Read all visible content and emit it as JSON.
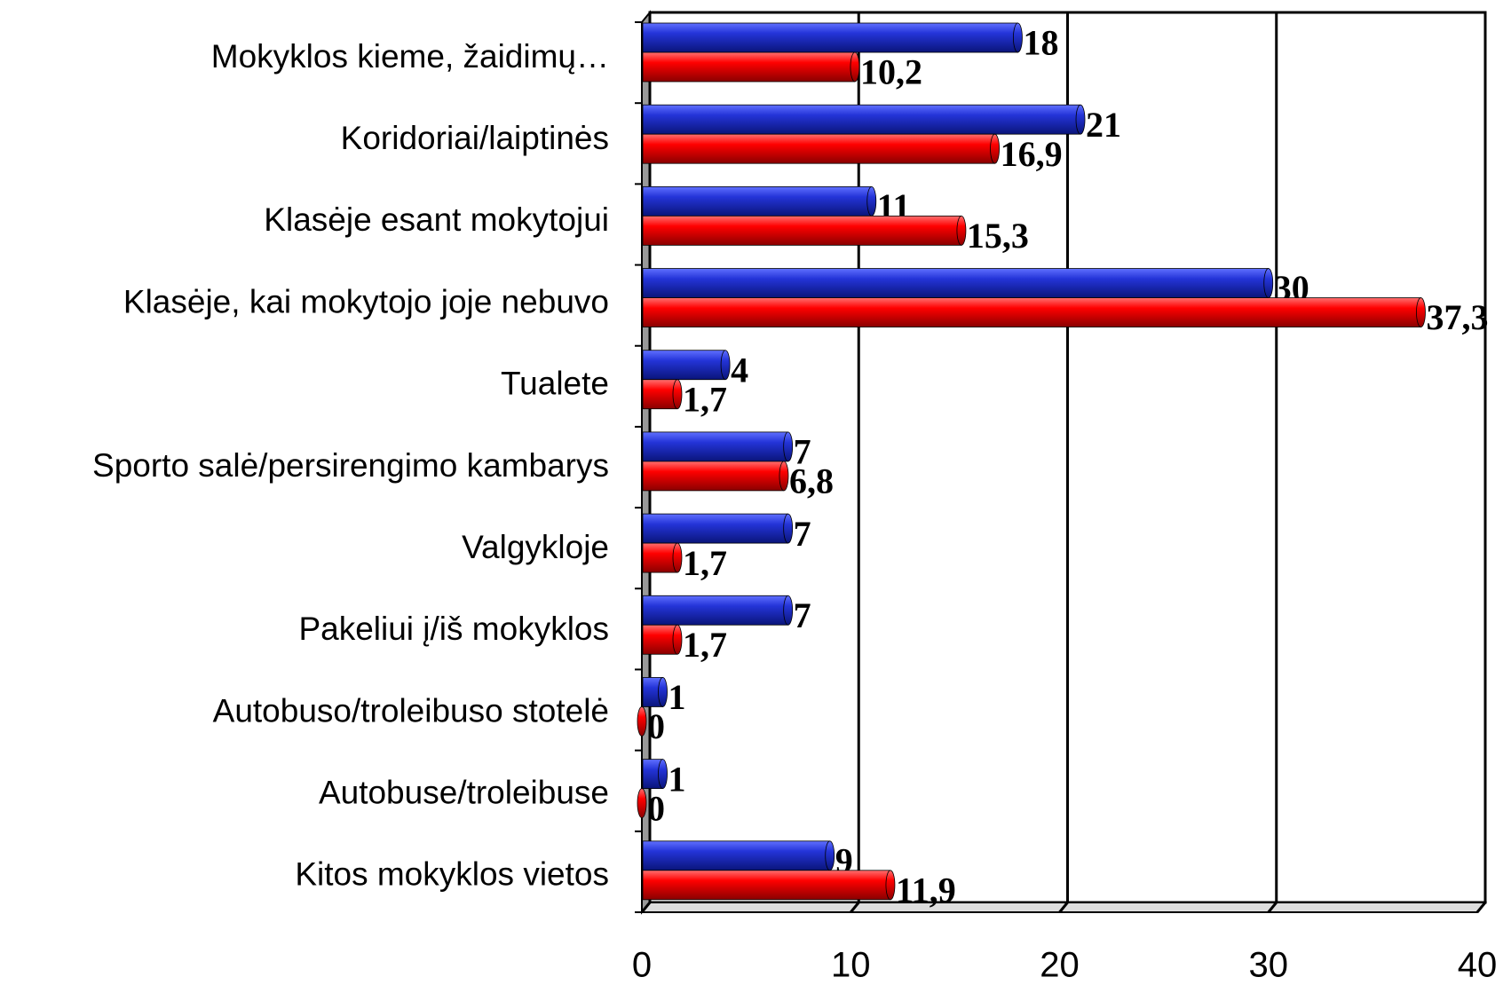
{
  "chart_data": {
    "type": "bar",
    "orientation": "horizontal",
    "categories": [
      "Mokyklos kieme, žaidimų…",
      "Koridoriai/laiptinės",
      "Klasėje esant mokytojui",
      "Klasėje, kai mokytojo joje nebuvo",
      "Tualete",
      "Sporto salė/persirengimo kambarys",
      "Valgykloje",
      "Pakeliui į/iš mokyklos",
      "Autobuso/troleibuso stotelė",
      "Autobuse/troleibuse",
      "Kitos mokyklos vietos"
    ],
    "series": [
      {
        "color": "#2434d8",
        "values": [
          18,
          21,
          11,
          30,
          4,
          7,
          7,
          7,
          1,
          1,
          9
        ]
      },
      {
        "color": "#ff0000",
        "values": [
          10.2,
          16.9,
          15.3,
          37.3,
          1.7,
          6.8,
          1.7,
          1.7,
          0,
          0,
          11.9
        ],
        "value_labels": [
          "10,2",
          "16,9",
          "15,3",
          "37,3",
          "1,7",
          "6,8",
          "1,7",
          "1,7",
          "0",
          "0",
          "11,9"
        ]
      }
    ],
    "xlim": [
      0,
      40
    ],
    "xticks": [
      0,
      10,
      20,
      30,
      40
    ],
    "grid": true
  }
}
